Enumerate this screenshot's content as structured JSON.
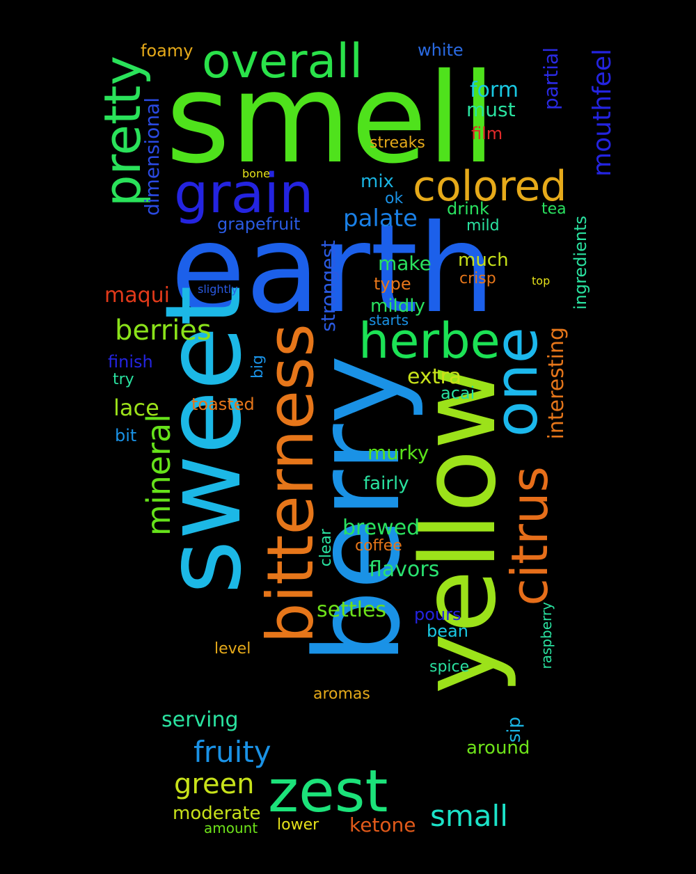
{
  "background": "#000000",
  "words": [
    {
      "text": "smell",
      "color": "#4fe21c",
      "weight": 100,
      "rotated": false
    },
    {
      "text": "earth",
      "color": "#1c60ea",
      "weight": 98,
      "rotated": false
    },
    {
      "text": "berry",
      "color": "#1a92e6",
      "weight": 96,
      "rotated": true
    },
    {
      "text": "sweet",
      "color": "#1cb8e6",
      "weight": 92,
      "rotated": true
    },
    {
      "text": "yellow",
      "color": "#9ce21a",
      "weight": 90,
      "rotated": true
    },
    {
      "text": "bitterness",
      "color": "#e6761a",
      "weight": 70,
      "rotated": true
    },
    {
      "text": "citrus",
      "color": "#e66e1a",
      "weight": 62,
      "rotated": true
    },
    {
      "text": "one",
      "color": "#1cb8ec",
      "weight": 64,
      "rotated": true
    },
    {
      "text": "herbe",
      "color": "#1ce255",
      "weight": 52,
      "rotated": false
    },
    {
      "text": "zest",
      "color": "#1ce27a",
      "weight": 56,
      "rotated": false
    },
    {
      "text": "grain",
      "color": "#2424e0",
      "weight": 50,
      "rotated": false
    },
    {
      "text": "pretty",
      "color": "#2ae25a",
      "weight": 48,
      "rotated": true
    },
    {
      "text": "overall",
      "color": "#2ae24a",
      "weight": 44,
      "rotated": false
    },
    {
      "text": "colored",
      "color": "#e6aa1a",
      "weight": 40,
      "rotated": false
    },
    {
      "text": "mineral",
      "color": "#66e21a",
      "weight": 38,
      "rotated": true
    },
    {
      "text": "mouthfeel",
      "color": "#2424e0",
      "weight": 30,
      "rotated": true
    },
    {
      "text": "interesting",
      "color": "#e6761a",
      "weight": 28,
      "rotated": true
    },
    {
      "text": "fruity",
      "color": "#1a92e6",
      "weight": 30,
      "rotated": false
    },
    {
      "text": "green",
      "color": "#c8e21a",
      "weight": 30,
      "rotated": false
    },
    {
      "text": "small",
      "color": "#1ce2c8",
      "weight": 30,
      "rotated": false
    },
    {
      "text": "berries",
      "color": "#8ae21a",
      "weight": 30,
      "rotated": false
    },
    {
      "text": "palate",
      "color": "#1a80e6",
      "weight": 26,
      "rotated": false
    },
    {
      "text": "partial",
      "color": "#2a2ae2",
      "weight": 26,
      "rotated": true
    },
    {
      "text": "dimensional",
      "color": "#2a4ae2",
      "weight": 24,
      "rotated": true
    },
    {
      "text": "strongest",
      "color": "#2a5ae2",
      "weight": 24,
      "rotated": true
    },
    {
      "text": "ingredients",
      "color": "#2ae2a0",
      "weight": 22,
      "rotated": true
    },
    {
      "text": "maqui",
      "color": "#e23a1a",
      "weight": 26,
      "rotated": false
    },
    {
      "text": "lace",
      "color": "#9ce21a",
      "weight": 26,
      "rotated": false
    },
    {
      "text": "extra",
      "color": "#c8e21a",
      "weight": 26,
      "rotated": false
    },
    {
      "text": "murky",
      "color": "#5ae21a",
      "weight": 24,
      "rotated": false
    },
    {
      "text": "brewed",
      "color": "#2ae260",
      "weight": 26,
      "rotated": false
    },
    {
      "text": "flavors",
      "color": "#2ae270",
      "weight": 26,
      "rotated": false
    },
    {
      "text": "settles",
      "color": "#6ee21a",
      "weight": 26,
      "rotated": false
    },
    {
      "text": "serving",
      "color": "#2ae2a0",
      "weight": 26,
      "rotated": false
    },
    {
      "text": "ketone",
      "color": "#e25a1a",
      "weight": 24,
      "rotated": false
    },
    {
      "text": "moderate",
      "color": "#c8e21a",
      "weight": 22,
      "rotated": false
    },
    {
      "text": "form",
      "color": "#1ac8e2",
      "weight": 24,
      "rotated": false
    },
    {
      "text": "must",
      "color": "#2ae2a0",
      "weight": 22,
      "rotated": false
    },
    {
      "text": "make",
      "color": "#2ae260",
      "weight": 22,
      "rotated": false
    },
    {
      "text": "much",
      "color": "#c8e21a",
      "weight": 22,
      "rotated": false
    },
    {
      "text": "mix",
      "color": "#1ab4e2",
      "weight": 22,
      "rotated": false
    },
    {
      "text": "mildly",
      "color": "#2ae260",
      "weight": 22,
      "rotated": false
    },
    {
      "text": "fairly",
      "color": "#2ae2a0",
      "weight": 22,
      "rotated": false
    },
    {
      "text": "drink",
      "color": "#2ae260",
      "weight": 20,
      "rotated": false
    },
    {
      "text": "around",
      "color": "#6ee21a",
      "weight": 20,
      "rotated": false
    },
    {
      "text": "foamy",
      "color": "#e6aa1a",
      "weight": 20,
      "rotated": false
    },
    {
      "text": "white",
      "color": "#2a6ae2",
      "weight": 20,
      "rotated": false
    },
    {
      "text": "film",
      "color": "#e22a2a",
      "weight": 20,
      "rotated": false
    },
    {
      "text": "streaks",
      "color": "#e6aa1a",
      "weight": 18,
      "rotated": false
    },
    {
      "text": "tea",
      "color": "#2ae260",
      "weight": 18,
      "rotated": false
    },
    {
      "text": "mild",
      "color": "#2ae2a0",
      "weight": 18,
      "rotated": false
    },
    {
      "text": "grapefruit",
      "color": "#2a5ae2",
      "weight": 20,
      "rotated": false
    },
    {
      "text": "type",
      "color": "#e6761a",
      "weight": 20,
      "rotated": false
    },
    {
      "text": "crisp",
      "color": "#e6761a",
      "weight": 18,
      "rotated": false
    },
    {
      "text": "finish",
      "color": "#2424e0",
      "weight": 20,
      "rotated": false
    },
    {
      "text": "toasted",
      "color": "#e6761a",
      "weight": 20,
      "rotated": false
    },
    {
      "text": "acai",
      "color": "#2ae2a0",
      "weight": 20,
      "rotated": false
    },
    {
      "text": "bit",
      "color": "#1a92e6",
      "weight": 20,
      "rotated": false
    },
    {
      "text": "coffee",
      "color": "#e6761a",
      "weight": 20,
      "rotated": false
    },
    {
      "text": "pours",
      "color": "#2424e0",
      "weight": 20,
      "rotated": false
    },
    {
      "text": "bean",
      "color": "#1ac8e2",
      "weight": 20,
      "rotated": false
    },
    {
      "text": "level",
      "color": "#e6aa1a",
      "weight": 18,
      "rotated": false
    },
    {
      "text": "spice",
      "color": "#2ae2a0",
      "weight": 18,
      "rotated": false
    },
    {
      "text": "aromas",
      "color": "#e6aa1a",
      "weight": 18,
      "rotated": false
    },
    {
      "text": "lower",
      "color": "#e6e21a",
      "weight": 18,
      "rotated": false
    },
    {
      "text": "amount",
      "color": "#6ee21a",
      "weight": 18,
      "rotated": false
    },
    {
      "text": "starts",
      "color": "#1a92e6",
      "weight": 18,
      "rotated": false
    },
    {
      "text": "try",
      "color": "#2ae2a0",
      "weight": 18,
      "rotated": false
    },
    {
      "text": "ok",
      "color": "#1a92e6",
      "weight": 18,
      "rotated": false
    },
    {
      "text": "slightly",
      "color": "#2a5ae2",
      "weight": 14,
      "rotated": false
    },
    {
      "text": "bone",
      "color": "#e6e21a",
      "weight": 14,
      "rotated": false
    },
    {
      "text": "top",
      "color": "#e6e21a",
      "weight": 14,
      "rotated": false
    },
    {
      "text": "big",
      "color": "#1a92e6",
      "weight": 18,
      "rotated": true
    },
    {
      "text": "clear",
      "color": "#2ae2a0",
      "weight": 18,
      "rotated": true
    },
    {
      "text": "sip",
      "color": "#1ab4e2",
      "weight": 20,
      "rotated": true
    },
    {
      "text": "raspberry",
      "color": "#2ae2a0",
      "weight": 18,
      "rotated": true
    }
  ]
}
